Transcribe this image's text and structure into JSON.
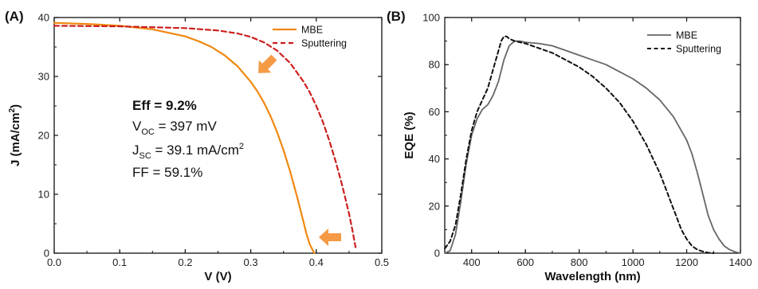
{
  "colors": {
    "mbe_a": "#f0880f",
    "sputtering_a": "#cc1f1f",
    "mbe_b": "#666666",
    "sputtering_b": "#111111",
    "arrow": "#f59a45"
  },
  "chart_data": [
    {
      "panel_label": "(A)",
      "type": "line",
      "xlabel": "V (V)",
      "ylabel_main": "J (mA/cm",
      "ylabel_sup": "2",
      "ylabel_tail": ")",
      "xlim": [
        0.0,
        0.5
      ],
      "ylim": [
        0,
        40
      ],
      "xticks": [
        "0.0",
        "0.1",
        "0.2",
        "0.3",
        "0.4",
        "0.5"
      ],
      "yticks": [
        "0",
        "10",
        "20",
        "30",
        "40"
      ],
      "legend_position": "top-right",
      "series": [
        {
          "name": "MBE",
          "style": "solid",
          "x": [
            0.0,
            0.05,
            0.1,
            0.15,
            0.2,
            0.22,
            0.24,
            0.26,
            0.28,
            0.3,
            0.31,
            0.32,
            0.33,
            0.34,
            0.35,
            0.36,
            0.37,
            0.38,
            0.385,
            0.39,
            0.397
          ],
          "y": [
            39.1,
            38.9,
            38.6,
            38.0,
            36.8,
            36.0,
            35.0,
            33.6,
            31.7,
            29.1,
            27.5,
            25.6,
            23.3,
            20.6,
            17.5,
            13.9,
            9.9,
            5.5,
            3.3,
            1.5,
            0
          ]
        },
        {
          "name": "Sputtering",
          "style": "dashed",
          "x": [
            0.0,
            0.1,
            0.2,
            0.25,
            0.28,
            0.3,
            0.32,
            0.34,
            0.36,
            0.38,
            0.39,
            0.4,
            0.41,
            0.42,
            0.43,
            0.44,
            0.45,
            0.455,
            0.46
          ],
          "y": [
            38.6,
            38.5,
            38.2,
            37.8,
            37.3,
            36.7,
            35.8,
            34.4,
            32.3,
            29.2,
            27.3,
            25.0,
            22.3,
            19.1,
            15.4,
            11.3,
            6.7,
            4.0,
            1.0
          ]
        }
      ],
      "annotations": {
        "eff": "Eff = 9.2%",
        "voc_main": "V",
        "voc_sub": "OC",
        "voc_value": " = 397 mV",
        "jsc_main": "J",
        "jsc_sub": "SC",
        "jsc_value": " = 39.1 mA/cm",
        "jsc_sup": "2",
        "ff": "FF = 59.1%"
      }
    },
    {
      "panel_label": "(B)",
      "type": "line",
      "xlabel": "Wavelength (nm)",
      "ylabel": "EQE (%)",
      "xlim": [
        300,
        1400
      ],
      "ylim": [
        0,
        100
      ],
      "xticks": [
        "400",
        "600",
        "800",
        "1000",
        "1200",
        "1400"
      ],
      "yticks": [
        "0",
        "20",
        "40",
        "60",
        "80",
        "100"
      ],
      "legend_position": "top-right",
      "series": [
        {
          "name": "MBE",
          "style": "solid",
          "x": [
            300,
            320,
            340,
            360,
            380,
            400,
            420,
            440,
            460,
            480,
            500,
            520,
            540,
            560,
            580,
            600,
            650,
            700,
            750,
            800,
            850,
            900,
            950,
            1000,
            1050,
            1100,
            1150,
            1200,
            1220,
            1240,
            1260,
            1280,
            1300,
            1320,
            1340,
            1360,
            1380,
            1400
          ],
          "y": [
            0,
            1,
            8,
            22,
            38,
            50,
            57,
            61,
            63,
            67,
            73,
            82,
            88,
            90,
            90,
            89.5,
            89,
            88,
            86,
            84,
            82,
            80,
            77,
            74,
            70,
            65,
            58,
            48,
            42,
            34,
            25,
            16,
            10,
            6,
            3,
            1.5,
            0.5,
            0
          ]
        },
        {
          "name": "Sputtering",
          "style": "dashed",
          "x": [
            300,
            320,
            340,
            360,
            380,
            400,
            420,
            440,
            460,
            480,
            500,
            510,
            520,
            530,
            540,
            560,
            580,
            600,
            650,
            700,
            750,
            800,
            850,
            900,
            950,
            1000,
            1050,
            1100,
            1120,
            1140,
            1160,
            1180,
            1200,
            1220,
            1240,
            1260,
            1280,
            1300
          ],
          "y": [
            2,
            5,
            12,
            25,
            40,
            52,
            60,
            65,
            70,
            78,
            86,
            90,
            92,
            92,
            91,
            90,
            89.5,
            89,
            87,
            85,
            82,
            79,
            75,
            70,
            64,
            56,
            46,
            34,
            28,
            22,
            16,
            10,
            6,
            3,
            1.5,
            0.7,
            0.2,
            0
          ]
        }
      ]
    }
  ]
}
